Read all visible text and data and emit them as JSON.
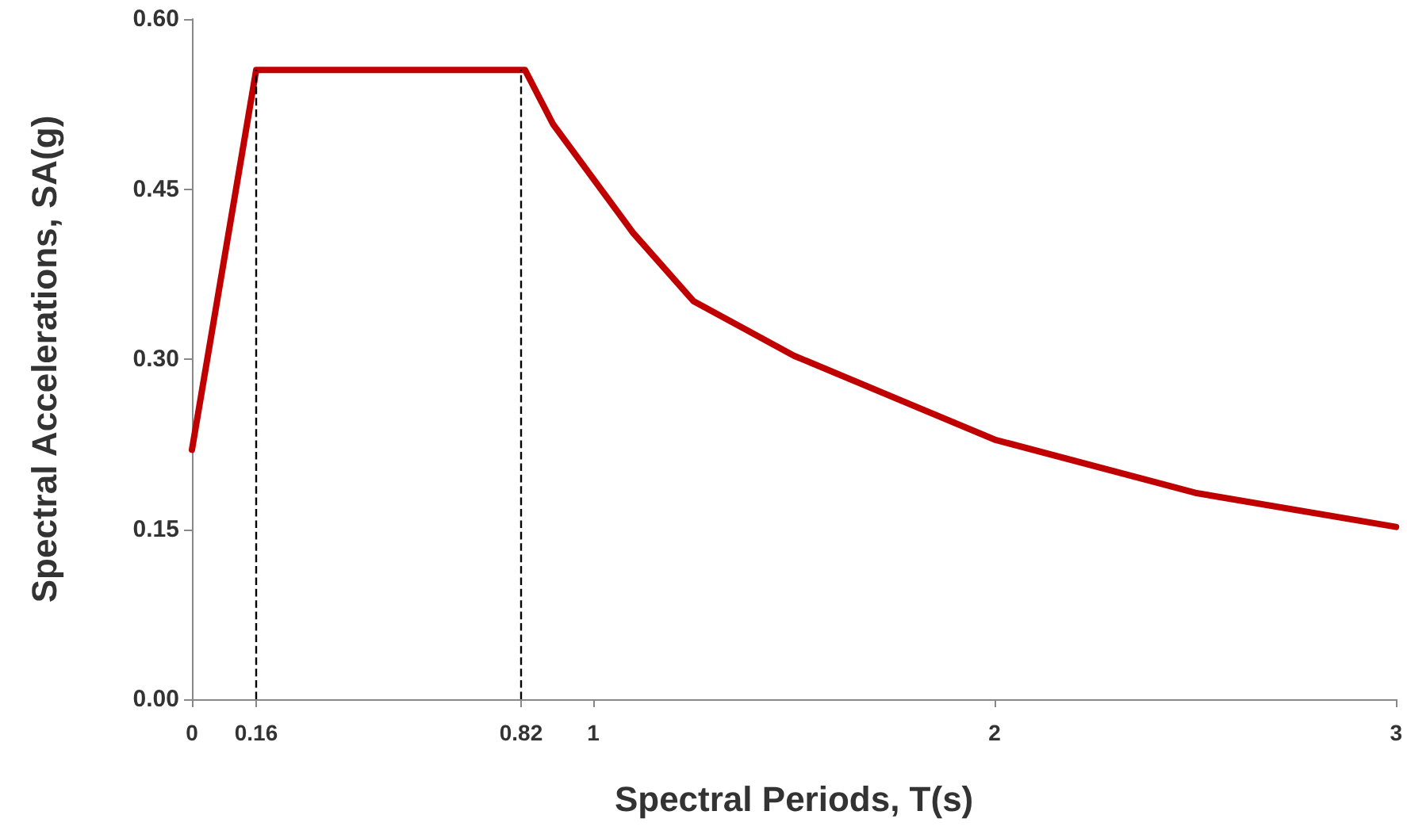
{
  "chart_data": {
    "type": "line",
    "xlabel": "Spectral Periods, T(s)",
    "ylabel": "Spectral Accelerations, SA(g)",
    "x": [
      0,
      0.16,
      0.83,
      0.9,
      1,
      1.1,
      1.25,
      1.5,
      2,
      2.5,
      3
    ],
    "series": [
      {
        "color": "#c00000",
        "values": [
          0.22,
          0.555,
          0.555,
          0.507,
          0.459,
          0.411,
          0.351,
          0.303,
          0.229,
          0.182,
          0.152
        ]
      }
    ],
    "xlim": [
      0,
      3
    ],
    "xticks": [
      0,
      0.16,
      0.82,
      1,
      2,
      3
    ],
    "ylim": [
      0,
      0.6
    ],
    "yticks": [
      {
        "value": 0,
        "label": "0.00"
      },
      {
        "value": 0.15,
        "label": "0.15"
      },
      {
        "value": 0.3,
        "label": "0.30"
      },
      {
        "value": 0.45,
        "label": "0.45"
      },
      {
        "value": 0.6,
        "label": "0.60"
      }
    ],
    "ref_lines": [
      {
        "axis": "x",
        "value": 0.16,
        "color": "#000000",
        "line_style": "dashed"
      },
      {
        "axis": "x",
        "value": 0.82,
        "color": "#000000",
        "line_style": "dashed"
      }
    ],
    "grid": false,
    "marker": "none",
    "line_style": "solid"
  }
}
